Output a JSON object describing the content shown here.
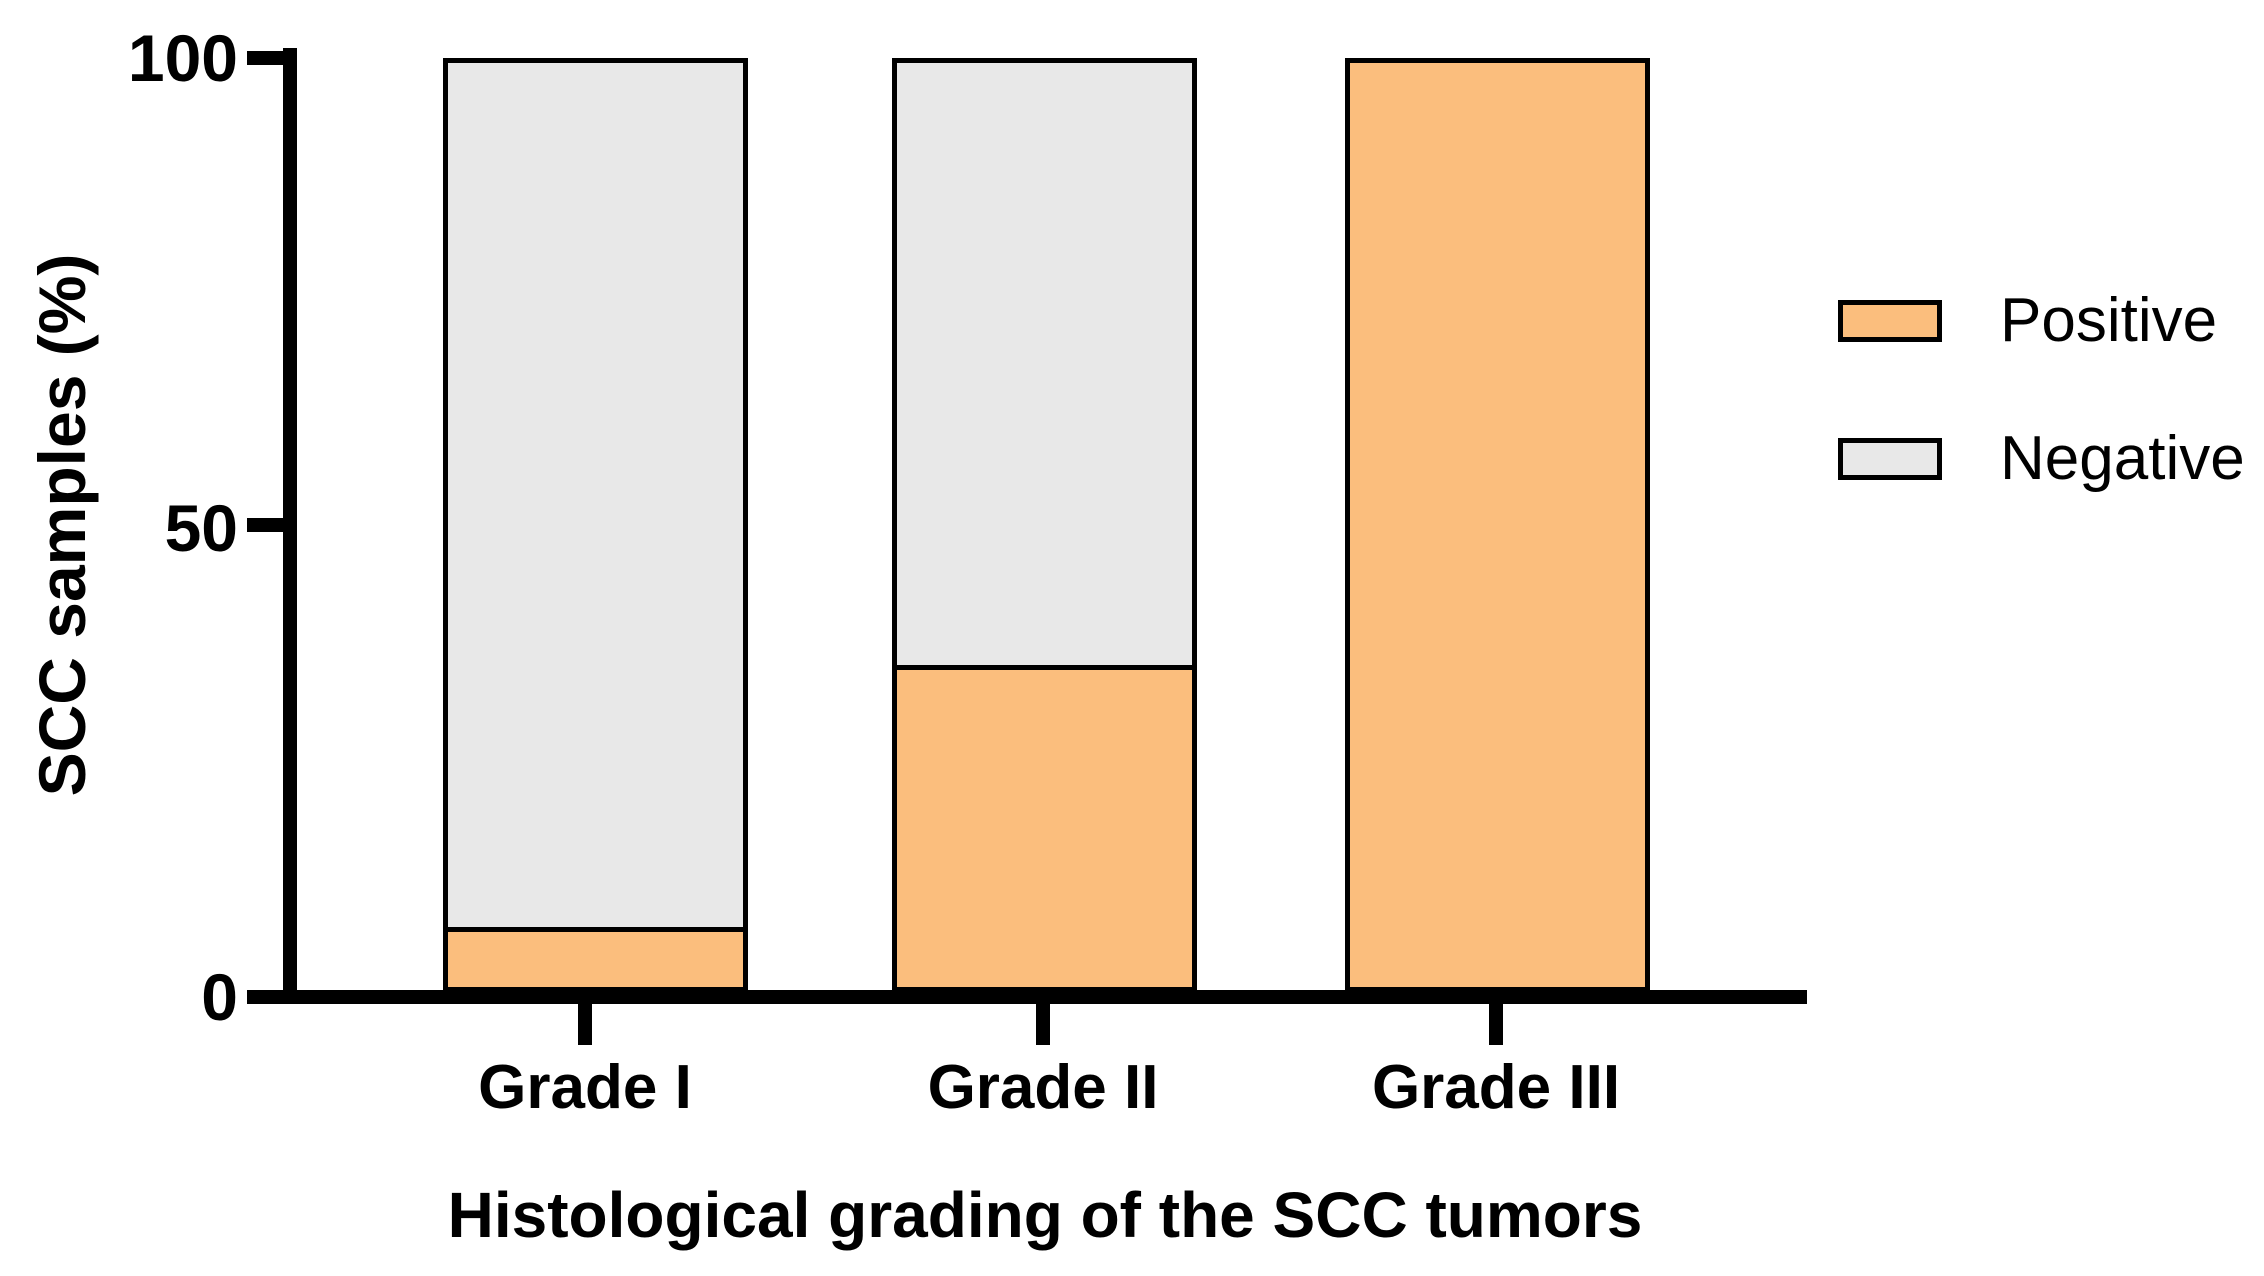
{
  "figure": {
    "background": "#ffffff",
    "axis_color": "#000000",
    "bar_border_color": "#000000"
  },
  "chart_data": {
    "type": "bar",
    "subtype": "stacked-percentage",
    "title": "",
    "xlabel": "Histological grading of the SCC tumors",
    "ylabel": "SCC samples (%)",
    "categories": [
      "Grade I",
      "Grade II",
      "Grade III"
    ],
    "series": [
      {
        "name": "Positive",
        "color": "#FBBE7D",
        "values": [
          7,
          35,
          100
        ]
      },
      {
        "name": "Negative",
        "color": "#E8E8E8",
        "values": [
          93,
          65,
          0
        ]
      }
    ],
    "ylim": [
      0,
      100
    ],
    "yticks": [
      100,
      50,
      0
    ],
    "ytick_labels": [
      "100",
      "50",
      "0"
    ],
    "grid": false,
    "legend_position": "right"
  }
}
